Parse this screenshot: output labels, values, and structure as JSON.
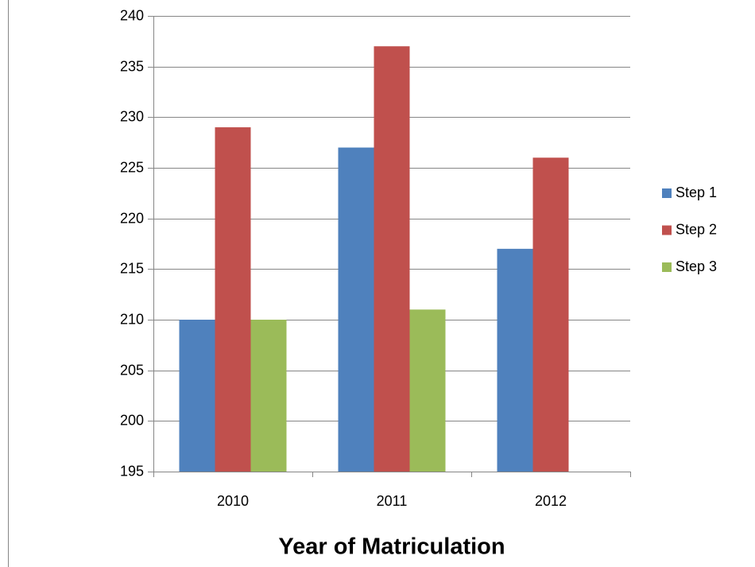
{
  "chart_data": {
    "type": "bar",
    "x_label": "Year of Matriculation",
    "categories": [
      "2010",
      "2011",
      "2012"
    ],
    "series": [
      {
        "name": "Step 1",
        "color": "#4f81bd",
        "values": [
          210,
          227,
          217
        ]
      },
      {
        "name": "Step 2",
        "color": "#c0504d",
        "values": [
          229,
          237,
          226
        ]
      },
      {
        "name": "Step 3",
        "color": "#9bbb59",
        "values": [
          210,
          211,
          null
        ]
      }
    ],
    "ylim": [
      195,
      240
    ],
    "yticks": [
      195,
      200,
      205,
      210,
      215,
      220,
      225,
      230,
      235,
      240
    ],
    "grid": true,
    "legend": "right"
  }
}
